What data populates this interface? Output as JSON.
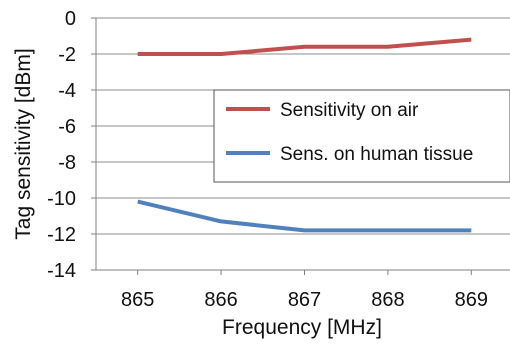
{
  "chart_data": {
    "type": "line",
    "title": "",
    "xlabel": "Frequency [MHz]",
    "ylabel": "Tag sensitivity [dBm]",
    "x": [
      865,
      866,
      867,
      868,
      869
    ],
    "x_tick_labels": [
      "865",
      "866",
      "867",
      "868",
      "869"
    ],
    "y_tick_labels": [
      "0",
      "-2",
      "-4",
      "-6",
      "-8",
      "-10",
      "-12",
      "-14"
    ],
    "y_ticks": [
      0,
      -2,
      -4,
      -6,
      -8,
      -10,
      -12,
      -14
    ],
    "xlim": [
      864.5,
      869.5
    ],
    "ylim": [
      -14,
      0
    ],
    "grid": "horizontal",
    "legend_position": "right",
    "series": [
      {
        "name": "Sensitivity on air",
        "color": "#c0504d",
        "values": [
          -2.0,
          -2.0,
          -1.6,
          -1.6,
          -1.2
        ]
      },
      {
        "name": "Sens. on human tissue",
        "color": "#4f81bd",
        "values": [
          -10.2,
          -11.3,
          -11.8,
          -11.8,
          -11.8
        ]
      }
    ]
  }
}
